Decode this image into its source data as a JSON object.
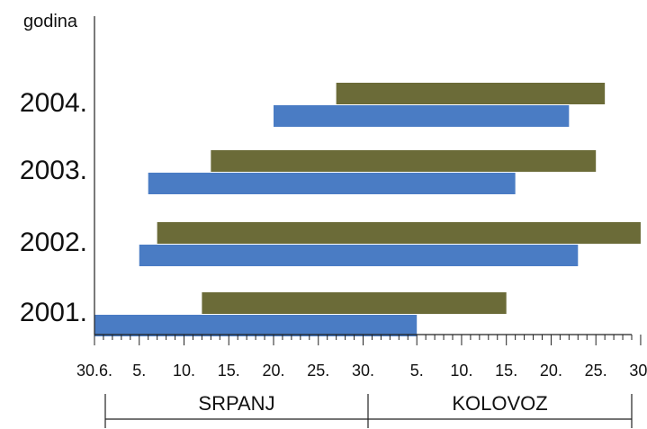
{
  "chart_data": {
    "type": "bar",
    "orientation": "horizontal",
    "stacked": false,
    "ylabel": "godina",
    "xlabel": "",
    "categories": [
      "2001.",
      "2002.",
      "2003.",
      "2004."
    ],
    "x_range_days": [
      "30.6.",
      "30.8."
    ],
    "series": [
      {
        "color": "#4a7cc4",
        "bars": [
          {
            "start": "30.6.",
            "end": "5.8."
          },
          {
            "start": "5.7.",
            "end": "23.8."
          },
          {
            "start": "6.7.",
            "end": "16.8."
          },
          {
            "start": "20.7.",
            "end": "22.8."
          }
        ]
      },
      {
        "color": "#6b6b38",
        "bars": [
          {
            "start": "12.7.",
            "end": "15.8."
          },
          {
            "start": "7.7.",
            "end": "30.8."
          },
          {
            "start": "13.7.",
            "end": "25.8."
          },
          {
            "start": "27.7.",
            "end": "26.8."
          }
        ]
      }
    ],
    "tick_labels": [
      "30.6.",
      "5.",
      "10.",
      "15.",
      "20.",
      "25.",
      "30.",
      "5.",
      "10.",
      "15.",
      "20.",
      "25.",
      "30."
    ],
    "months": [
      "SRPANJ",
      "KOLOVOZ"
    ],
    "grid": false,
    "legend": "none"
  }
}
